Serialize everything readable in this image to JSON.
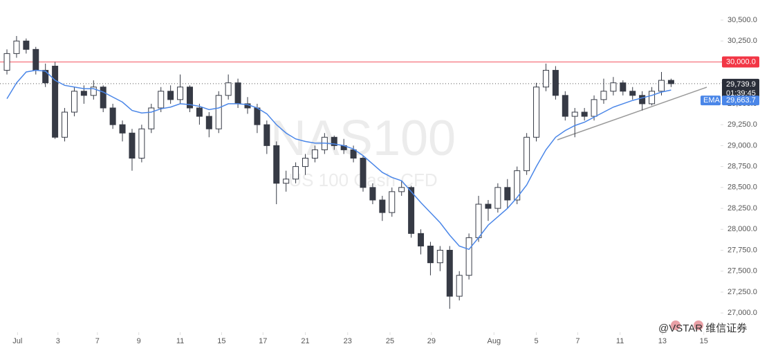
{
  "chart_data": {
    "type": "candlestick",
    "title": "NAS100",
    "subtitle": "US 100 Cash CFD",
    "xlim": [
      -0.72,
      74
    ],
    "ylim": [
      26770,
      30740
    ],
    "xticks": [
      {
        "value": 1.1,
        "label": "Jul"
      },
      {
        "value": 5.3,
        "label": "3"
      },
      {
        "value": 9.4,
        "label": "7"
      },
      {
        "value": 13.7,
        "label": "9"
      },
      {
        "value": 18.0,
        "label": "11"
      },
      {
        "value": 22.3,
        "label": "15"
      },
      {
        "value": 26.6,
        "label": "17"
      },
      {
        "value": 31.0,
        "label": "21"
      },
      {
        "value": 35.4,
        "label": "23"
      },
      {
        "value": 39.8,
        "label": "25"
      },
      {
        "value": 44.1,
        "label": "29"
      },
      {
        "value": 50.6,
        "label": "Aug"
      },
      {
        "value": 55.0,
        "label": "5"
      },
      {
        "value": 59.3,
        "label": "7"
      },
      {
        "value": 63.7,
        "label": "11"
      },
      {
        "value": 68.1,
        "label": "13"
      },
      {
        "value": 72.4,
        "label": "15"
      }
    ],
    "yticks": [
      {
        "value": 27000,
        "label": "27,000.0"
      },
      {
        "value": 27250,
        "label": "27,250.0"
      },
      {
        "value": 27500,
        "label": "27,500.0"
      },
      {
        "value": 27750,
        "label": "27,750.0"
      },
      {
        "value": 28000,
        "label": "28,000.0"
      },
      {
        "value": 28250,
        "label": "28,250.0"
      },
      {
        "value": 28500,
        "label": "28,500.0"
      },
      {
        "value": 28750,
        "label": "28,750.0"
      },
      {
        "value": 29000,
        "label": "29,000.0"
      },
      {
        "value": 29250,
        "label": "29,250.0"
      },
      {
        "value": 29500,
        "label": "29,500.0"
      },
      {
        "value": 29750,
        "label": "29,750.0"
      },
      {
        "value": 30000,
        "label": "30,000.0"
      },
      {
        "value": 30250,
        "label": "30,250.0"
      },
      {
        "value": 30500,
        "label": "30,500.0"
      }
    ],
    "series": [
      {
        "up_color": "#ffffff",
        "down_color": "#363a45",
        "values": [
          [
            29900,
            30150,
            29850,
            30100
          ],
          [
            30100,
            30310,
            30050,
            30250
          ],
          [
            30250,
            30280,
            30100,
            30150
          ],
          [
            30150,
            30180,
            29850,
            29900
          ],
          [
            29900,
            29980,
            29700,
            29750
          ],
          [
            29950,
            30000,
            29080,
            29100
          ],
          [
            29100,
            29450,
            29050,
            29400
          ],
          [
            29400,
            29700,
            29350,
            29650
          ],
          [
            29650,
            29720,
            29500,
            29600
          ],
          [
            29600,
            29780,
            29550,
            29700
          ],
          [
            29700,
            29720,
            29400,
            29450
          ],
          [
            29450,
            29500,
            29200,
            29250
          ],
          [
            29250,
            29300,
            29050,
            29150
          ],
          [
            29150,
            29200,
            28700,
            28850
          ],
          [
            28850,
            29250,
            28800,
            29200
          ],
          [
            29200,
            29500,
            29150,
            29450
          ],
          [
            29450,
            29700,
            29400,
            29650
          ],
          [
            29650,
            29720,
            29500,
            29550
          ],
          [
            29550,
            29850,
            29500,
            29700
          ],
          [
            29700,
            29720,
            29400,
            29450
          ],
          [
            29450,
            29500,
            29250,
            29350
          ],
          [
            29350,
            29400,
            29100,
            29200
          ],
          [
            29200,
            29650,
            29150,
            29600
          ],
          [
            29600,
            29850,
            29550,
            29750
          ],
          [
            29750,
            29800,
            29450,
            29500
          ],
          [
            29500,
            29580,
            29380,
            29450
          ],
          [
            29450,
            29500,
            29150,
            29250
          ],
          [
            29250,
            29300,
            28900,
            29000
          ],
          [
            29000,
            29050,
            28300,
            28550
          ],
          [
            28550,
            28700,
            28450,
            28600
          ],
          [
            28600,
            28800,
            28550,
            28750
          ],
          [
            28750,
            28900,
            28650,
            28850
          ],
          [
            28850,
            29000,
            28800,
            28950
          ],
          [
            28950,
            29150,
            28900,
            29100
          ],
          [
            29100,
            29120,
            28950,
            29000
          ],
          [
            29000,
            29080,
            28900,
            28950
          ],
          [
            28950,
            29000,
            28800,
            28850
          ],
          [
            28850,
            28880,
            28450,
            28500
          ],
          [
            28500,
            28550,
            28300,
            28350
          ],
          [
            28350,
            28400,
            28100,
            28200
          ],
          [
            28200,
            28500,
            28150,
            28450
          ],
          [
            28450,
            28580,
            28400,
            28500
          ],
          [
            28500,
            28520,
            27900,
            27950
          ],
          [
            27950,
            28000,
            27700,
            27800
          ],
          [
            27800,
            27850,
            27450,
            27600
          ],
          [
            27600,
            27800,
            27500,
            27750
          ],
          [
            27750,
            27800,
            27050,
            27200
          ],
          [
            27200,
            27500,
            27150,
            27450
          ],
          [
            27450,
            27950,
            27400,
            27900
          ],
          [
            27900,
            28400,
            27850,
            28300
          ],
          [
            28300,
            28350,
            28100,
            28250
          ],
          [
            28250,
            28550,
            28200,
            28500
          ],
          [
            28500,
            28600,
            28250,
            28350
          ],
          [
            28350,
            28750,
            28300,
            28700
          ],
          [
            28700,
            29150,
            28650,
            29100
          ],
          [
            29100,
            29750,
            29050,
            29700
          ],
          [
            29700,
            29980,
            29650,
            29900
          ],
          [
            29900,
            29950,
            29550,
            29600
          ],
          [
            29600,
            29650,
            29300,
            29350
          ],
          [
            29350,
            29450,
            29100,
            29400
          ],
          [
            29400,
            29450,
            29300,
            29350
          ],
          [
            29350,
            29600,
            29300,
            29550
          ],
          [
            29550,
            29800,
            29500,
            29650
          ],
          [
            29650,
            29820,
            29600,
            29750
          ],
          [
            29750,
            29780,
            29600,
            29650
          ],
          [
            29650,
            29700,
            29550,
            29600
          ],
          [
            29600,
            29650,
            29420,
            29500
          ],
          [
            29500,
            29700,
            29480,
            29650
          ],
          [
            29650,
            29880,
            29600,
            29780
          ],
          [
            29780,
            29800,
            29700,
            29740
          ]
        ]
      },
      {
        "name": "EMA",
        "color": "#4a86e8",
        "values": [
          29560,
          29750,
          29880,
          29900,
          29890,
          29780,
          29720,
          29700,
          29680,
          29680,
          29640,
          29580,
          29520,
          29420,
          29390,
          29400,
          29440,
          29460,
          29500,
          29490,
          29470,
          29430,
          29450,
          29500,
          29500,
          29490,
          29450,
          29380,
          29250,
          29150,
          29080,
          29050,
          29030,
          29030,
          29020,
          29000,
          28960,
          28880,
          28780,
          28680,
          28620,
          28580,
          28450,
          28320,
          28200,
          28080,
          27930,
          27800,
          27760,
          27900,
          28050,
          28150,
          28250,
          28380,
          28530,
          28750,
          28950,
          29100,
          29180,
          29240,
          29280,
          29340,
          29400,
          29460,
          29500,
          29540,
          29570,
          29600,
          29640,
          29664
        ]
      }
    ],
    "reference_line": {
      "value": 30000,
      "label": "30,000.0",
      "color": "#f23645"
    },
    "last_price": {
      "value": 29739.9,
      "label": "29,739.9",
      "countdown": "01:39:45"
    },
    "ema_last": {
      "value": 29663.7,
      "label": "29,663.7"
    },
    "watermark": "@VSTAR 维信证券"
  }
}
